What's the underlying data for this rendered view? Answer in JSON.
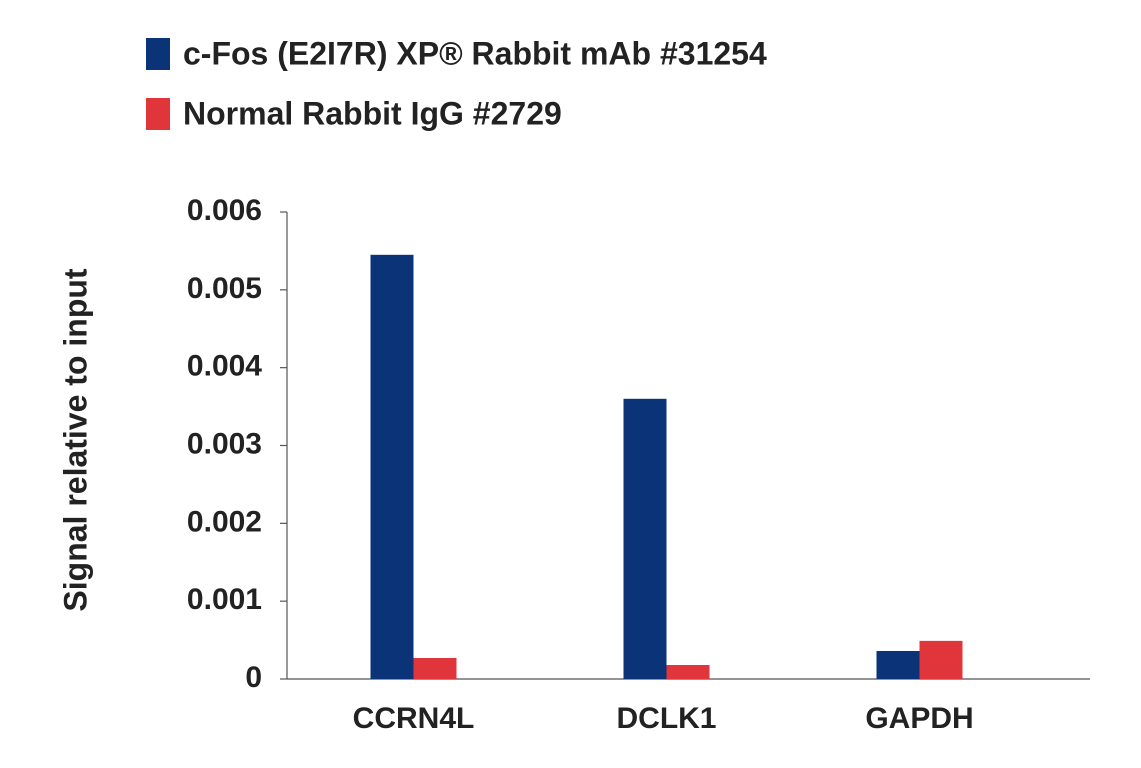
{
  "chart_data": {
    "type": "bar",
    "y_label": "Signal relative to input",
    "categories": [
      "CCRN4L",
      "DCLK1",
      "GAPDH"
    ],
    "series": [
      {
        "name": "c-Fos (E2I7R) XP® Rabbit mAb #31254",
        "color": "#0a3378",
        "values": [
          0.00545,
          0.0036,
          0.00036
        ]
      },
      {
        "name": "Normal Rabbit IgG #2729",
        "color": "#e0353a",
        "values": [
          0.00027,
          0.00018,
          0.00049
        ]
      }
    ],
    "ylim": [
      0,
      0.006
    ],
    "yticks": [
      0,
      0.001,
      0.002,
      0.003,
      0.004,
      0.005,
      0.006
    ],
    "grid": false
  }
}
